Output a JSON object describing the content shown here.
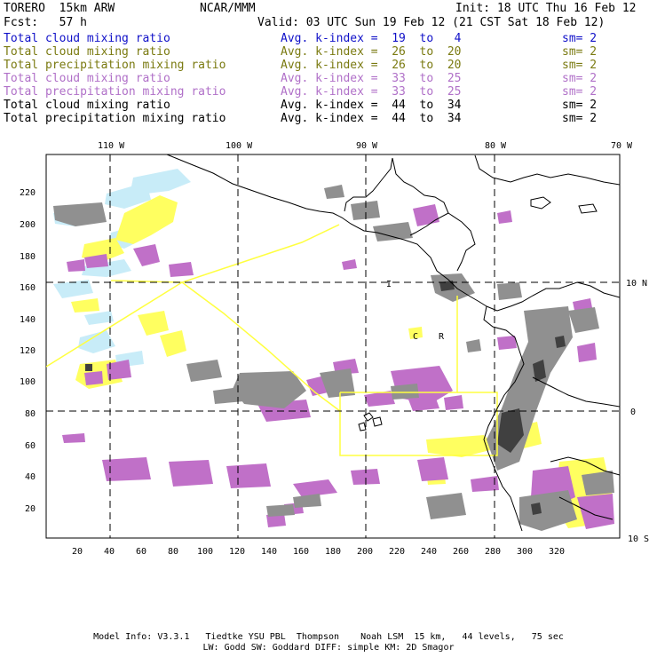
{
  "header": {
    "model": "TORERO  15km ARW",
    "org": "NCAR/MMM",
    "init": "Init: 18 UTC Thu 16 Feb 12",
    "fcst": "Fcst:   57 h",
    "valid": "Valid: 03 UTC Sun 19 Feb 12 (21 CST Sat 18 Feb 12)"
  },
  "legend": [
    {
      "field": "Total cloud mixing ratio",
      "kindex": "Avg. k-index =  19  to   4",
      "sm": "sm= 2",
      "color": "#1010c8"
    },
    {
      "field": "Total cloud mixing ratio",
      "kindex": "Avg. k-index =  26  to  20",
      "sm": "sm= 2",
      "color": "#7a7a10"
    },
    {
      "field": "Total precipitation mixing ratio",
      "kindex": "Avg. k-index =  26  to  20",
      "sm": "sm= 2",
      "color": "#7a7a10"
    },
    {
      "field": "Total cloud mixing ratio",
      "kindex": "Avg. k-index =  33  to  25",
      "sm": "sm= 2",
      "color": "#b070c8"
    },
    {
      "field": "Total precipitation mixing ratio",
      "kindex": "Avg. k-index =  33  to  25",
      "sm": "sm= 2",
      "color": "#b070c8"
    },
    {
      "field": "Total cloud mixing ratio",
      "kindex": "Avg. k-index =  44  to  34",
      "sm": "sm= 2",
      "color": "#000000"
    },
    {
      "field": "Total precipitation mixing ratio",
      "kindex": "Avg. k-index =  44  to  34",
      "sm": "sm= 2",
      "color": "#000000"
    }
  ],
  "map": {
    "lon_labels": [
      "110 W",
      "100 W",
      "90 W",
      "80 W",
      "70 W"
    ],
    "lat_labels": [
      "10 N",
      "0",
      "10 S"
    ],
    "x_ticks": [
      "20",
      "40",
      "60",
      "80",
      "100",
      "120",
      "140",
      "160",
      "180",
      "200",
      "220",
      "240",
      "260",
      "280",
      "300",
      "320"
    ],
    "y_ticks": [
      "20",
      "40",
      "60",
      "80",
      "100",
      "120",
      "140",
      "160",
      "180",
      "200",
      "220"
    ],
    "box_letters": [
      "I",
      "C",
      "R"
    ],
    "colors": {
      "light_cyan": "#c8ecf8",
      "yellow": "#ffff60",
      "violet": "#c070c8",
      "gray": "#909090",
      "dark_gray": "#404040",
      "outline": "#ffff40",
      "coast": "#000000"
    }
  },
  "footer": {
    "line1": "Model Info: V3.3.1   Tiedtke YSU PBL  Thompson    Noah LSM  15 km,   44 levels,   75 sec",
    "line2": "LW: Godd SW: Goddard DIFF: simple KM: 2D Smagor"
  }
}
